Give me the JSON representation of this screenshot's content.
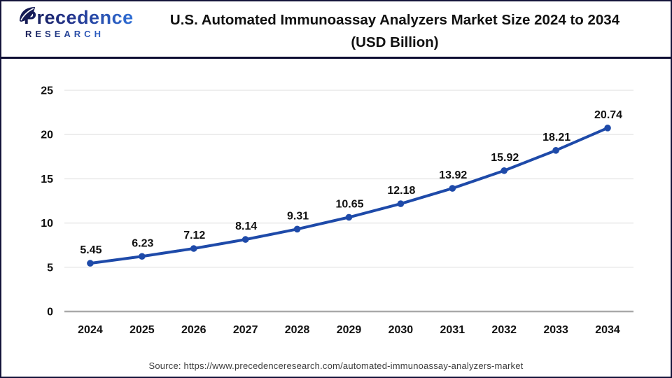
{
  "header": {
    "logo": {
      "brand_line1": "Precedence",
      "brand_line2": "RESEARCH",
      "leaf_icon": "leaf-icon"
    },
    "title_line1": "U.S. Automated Immunoassay Analyzers Market Size 2024 to 2034",
    "title_line2": "(USD Billion)"
  },
  "footer": {
    "source_text": "Source: https://www.precedenceresearch.com/automated-immunoassay-analyzers-market"
  },
  "colors": {
    "line": "#1e4aa9",
    "marker": "#1e4aa9",
    "grid": "#e9e9e9",
    "zero_axis": "#a9a9a9",
    "tick_label": "#111111",
    "data_label": "#111111",
    "header_rule": "#0e0e33",
    "frame_border": "#14143a"
  },
  "chart_data": {
    "type": "line",
    "title": "U.S. Automated Immunoassay Analyzers Market Size 2024 to 2034 (USD Billion)",
    "categories": [
      "2024",
      "2025",
      "2026",
      "2027",
      "2028",
      "2029",
      "2030",
      "2031",
      "2032",
      "2033",
      "2034"
    ],
    "series": [
      {
        "name": "U.S. Automated Immunoassay Analyzers Market Size (USD Billion)",
        "values": [
          5.45,
          6.23,
          7.12,
          8.14,
          9.31,
          10.65,
          12.18,
          13.92,
          15.92,
          18.21,
          20.74
        ]
      }
    ],
    "data_labels": [
      "5.45",
      "6.23",
      "7.12",
      "8.14",
      "9.31",
      "10.65",
      "12.18",
      "13.92",
      "15.92",
      "18.21",
      "20.74"
    ],
    "xlabel": "",
    "ylabel": "",
    "ylim": [
      0,
      25
    ],
    "yticks": [
      0,
      5,
      10,
      15,
      20,
      25
    ],
    "grid": "horizontal",
    "legend": "none",
    "marker": "circle"
  }
}
